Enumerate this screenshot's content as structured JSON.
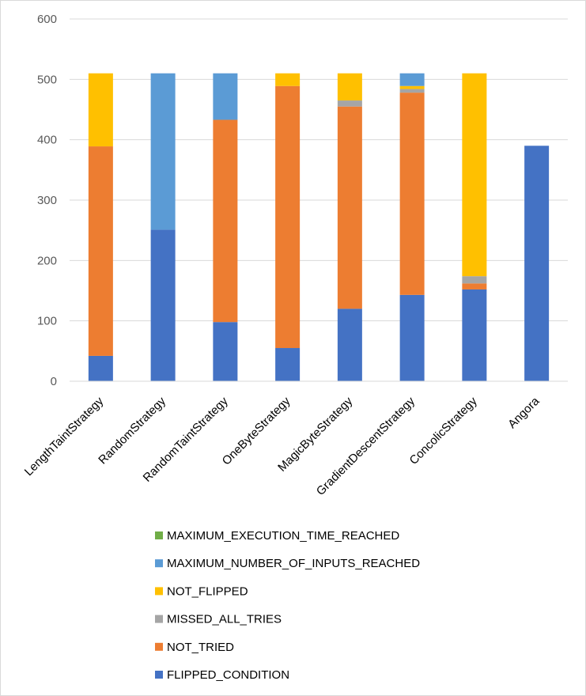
{
  "chart_data": {
    "type": "bar",
    "stacked": true,
    "title": "",
    "xlabel": "",
    "ylabel": "",
    "ylim": [
      0,
      600
    ],
    "yticks": [
      0,
      100,
      200,
      300,
      400,
      500,
      600
    ],
    "grid": true,
    "legend_position": "bottom",
    "categories": [
      "LengthTaintStrategy",
      "RandomStrategy",
      "RandomTaintStrategy",
      "OneByteStrategy",
      "MagicByteStrategy",
      "GradientDescentStrategy",
      "ConcolicStrategy",
      "Angora"
    ],
    "series": [
      {
        "name": "FLIPPED_CONDITION",
        "color": "#4472C4",
        "values": [
          42,
          251,
          98,
          55,
          120,
          143,
          152,
          390
        ]
      },
      {
        "name": "NOT_TRIED",
        "color": "#ED7D31",
        "values": [
          347,
          0,
          335,
          434,
          335,
          335,
          10,
          0
        ]
      },
      {
        "name": "MISSED_ALL_TRIES",
        "color": "#A5A5A5",
        "values": [
          0,
          0,
          0,
          0,
          10,
          6,
          12,
          0
        ]
      },
      {
        "name": "NOT_FLIPPED",
        "color": "#FFC000",
        "values": [
          121,
          0,
          0,
          21,
          45,
          5,
          336,
          0
        ]
      },
      {
        "name": "MAXIMUM_NUMBER_OF_INPUTS_REACHED",
        "color": "#5B9BD5",
        "values": [
          0,
          259,
          77,
          0,
          0,
          21,
          0,
          0
        ]
      },
      {
        "name": "MAXIMUM_EXECUTION_TIME_REACHED",
        "color": "#70AD47",
        "values": [
          0,
          0,
          0,
          0,
          0,
          0,
          0,
          0
        ]
      }
    ]
  }
}
